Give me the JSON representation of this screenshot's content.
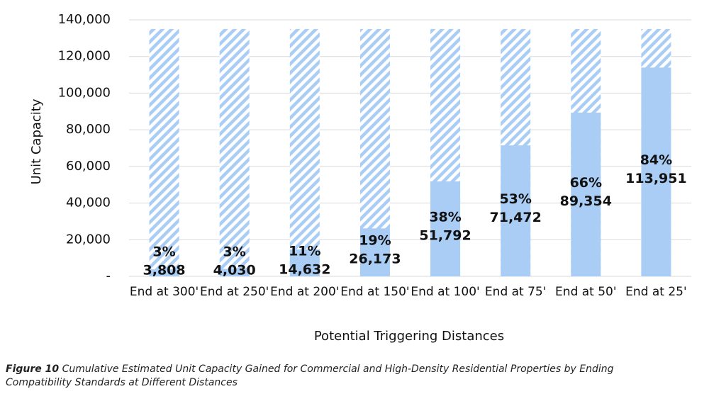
{
  "chart_data": {
    "type": "bar",
    "y_label": "Unit Capacity",
    "x_label": "Potential Triggering Distances",
    "categories": [
      "End at 300'",
      "End at 250'",
      "End at 200'",
      "End at 150'",
      "End at 100'",
      "End at 75'",
      "End at 50'",
      "End at 25'"
    ],
    "values": [
      3808,
      4030,
      14632,
      26173,
      51792,
      71472,
      89354,
      113951
    ],
    "value_labels": [
      "3,808",
      "4,030",
      "14,632",
      "26,173",
      "51,792",
      "71,472",
      "89,354",
      "113,951"
    ],
    "shares": [
      3,
      3,
      11,
      19,
      38,
      53,
      66,
      84
    ],
    "share_labels": [
      "3%",
      "3%",
      "11%",
      "19%",
      "38%",
      "53%",
      "66%",
      "84%"
    ],
    "total": 135000,
    "color": "#a9cdf5",
    "ylim": [
      0,
      140000
    ],
    "yticks": [
      {
        "value": 0,
        "label": "-"
      },
      {
        "value": 20000,
        "label": "20,000"
      },
      {
        "value": 40000,
        "label": "40,000"
      },
      {
        "value": 60000,
        "label": "60,000"
      },
      {
        "value": 80000,
        "label": "80,000"
      },
      {
        "value": 100000,
        "label": "100,000"
      },
      {
        "value": 120000,
        "label": "120,000"
      },
      {
        "value": 140000,
        "label": "140,000"
      }
    ],
    "grid": true
  },
  "caption": {
    "label": "Figure 10",
    "text": "Cumulative Estimated Unit Capacity Gained for Commercial and High-Density Residential Properties by Ending Compatibility Standards at Different Distances"
  }
}
